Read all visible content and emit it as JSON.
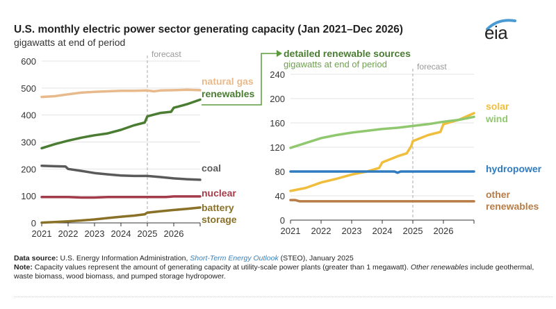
{
  "header": {
    "title": "U.S. monthly electric power sector generating capacity (Jan 2021–Dec 2026)",
    "subtitle": "gigawatts at end of period",
    "logo": "eia"
  },
  "footer": {
    "source_label": "Data source:",
    "source_text_1": " U.S. Energy Information Administration, ",
    "source_link": "Short-Term Energy Outlook",
    "source_text_2": " (STEO), January 2025",
    "note_label": "Note:",
    "note_text_1": " Capacity values represent the amount of generating capacity at utility-scale power plants (greater than 1 megawatt). ",
    "note_italic": "Other renewables",
    "note_text_2": " include geothermal, waste biomass, wood biomass, and pumped storage hydropower."
  },
  "chart_data": [
    {
      "type": "line",
      "title": "U.S. monthly electric power sector generating capacity (Jan 2021–Dec 2026)",
      "ylabel": "gigawatts at end of period",
      "xlabel": "",
      "ylim": [
        0,
        600
      ],
      "yticks": [
        0,
        100,
        200,
        300,
        400,
        500,
        600
      ],
      "xticks": [
        "2021",
        "2022",
        "2023",
        "2024",
        "2025",
        "2026"
      ],
      "xlim": [
        2021,
        2027
      ],
      "forecast_start": 2025,
      "forecast_label": "forecast",
      "grid": true,
      "legend": "right (direct labels)",
      "series": [
        {
          "name": "natural gas",
          "color": "#e8b98a",
          "x": [
            2021,
            2021.5,
            2022,
            2022.5,
            2023,
            2023.5,
            2024,
            2024.5,
            2025,
            2025.25,
            2025.5,
            2026,
            2026.5,
            2027
          ],
          "values": [
            467,
            470,
            477,
            483,
            486,
            488,
            490,
            490,
            491,
            488,
            491,
            492,
            494,
            492
          ]
        },
        {
          "name": "renewables",
          "color": "#4a7c32",
          "x": [
            2021,
            2021.5,
            2022,
            2022.5,
            2023,
            2023.5,
            2024,
            2024.5,
            2024.9,
            2025,
            2025.5,
            2025.9,
            2026,
            2026.5,
            2027
          ],
          "values": [
            277,
            292,
            305,
            316,
            325,
            332,
            345,
            362,
            372,
            395,
            408,
            412,
            427,
            440,
            457
          ]
        },
        {
          "name": "coal",
          "color": "#5a5a5a",
          "x": [
            2021,
            2021.5,
            2021.9,
            2022,
            2022.5,
            2023,
            2023.5,
            2024,
            2024.5,
            2025,
            2025.5,
            2026,
            2026.5,
            2027
          ],
          "values": [
            212,
            210,
            209,
            200,
            193,
            185,
            180,
            176,
            174,
            174,
            170,
            165,
            162,
            160
          ]
        },
        {
          "name": "nuclear",
          "color": "#a33b4a",
          "x": [
            2021,
            2022,
            2022.5,
            2023,
            2023.5,
            2024,
            2025,
            2025.7,
            2026,
            2027
          ],
          "values": [
            96,
            96,
            94,
            94,
            96,
            96,
            96,
            96,
            98,
            98
          ]
        },
        {
          "name": "battery storage",
          "color": "#8a7128",
          "x": [
            2021,
            2021.5,
            2022,
            2022.5,
            2023,
            2023.5,
            2024,
            2024.5,
            2024.9,
            2025,
            2025.5,
            2026,
            2026.5,
            2027
          ],
          "values": [
            1,
            3,
            6,
            9,
            13,
            18,
            23,
            27,
            32,
            38,
            43,
            48,
            52,
            57
          ]
        }
      ]
    },
    {
      "type": "line",
      "title": "detailed renewable sources",
      "ylabel": "gigawatts at end of period",
      "xlabel": "",
      "ylim": [
        0,
        240
      ],
      "yticks": [
        0,
        40,
        80,
        120,
        160,
        200,
        240
      ],
      "xticks": [
        "2021",
        "2022",
        "2023",
        "2024",
        "2025",
        "2026"
      ],
      "xlim": [
        2021,
        2027
      ],
      "forecast_start": 2025,
      "forecast_label": "forecast",
      "grid": true,
      "legend": "right (direct labels)",
      "series": [
        {
          "name": "solar",
          "color": "#f0be3c",
          "x": [
            2021,
            2021.5,
            2022,
            2022.5,
            2023,
            2023.5,
            2023.9,
            2024,
            2024.5,
            2024.8,
            2024.95,
            2025,
            2025.5,
            2025.9,
            2026,
            2026.5,
            2027
          ],
          "values": [
            48,
            53,
            62,
            68,
            75,
            80,
            86,
            95,
            105,
            110,
            122,
            130,
            140,
            145,
            158,
            165,
            176
          ]
        },
        {
          "name": "wind",
          "color": "#8fc86e",
          "x": [
            2021,
            2021.5,
            2022,
            2022.5,
            2023,
            2023.5,
            2024,
            2024.5,
            2025,
            2025.5,
            2026,
            2026.5,
            2027
          ],
          "values": [
            119,
            127,
            135,
            140,
            144,
            147,
            150,
            152,
            155,
            158,
            162,
            165,
            170
          ]
        },
        {
          "name": "hydropower",
          "color": "#2f7bbf",
          "x": [
            2021,
            2024,
            2024.4,
            2024.5,
            2024.6,
            2025,
            2027
          ],
          "values": [
            80,
            80,
            80,
            78,
            80,
            80,
            80
          ]
        },
        {
          "name": "other renewables",
          "color": "#b87d46",
          "x": [
            2021,
            2021.15,
            2021.3,
            2027
          ],
          "values": [
            33,
            33,
            31,
            31
          ]
        }
      ]
    }
  ],
  "detail_connector": {
    "label": "detailed renewable sources",
    "sublabel": "gigawatts at end of period",
    "color": "#5b9a3c"
  }
}
